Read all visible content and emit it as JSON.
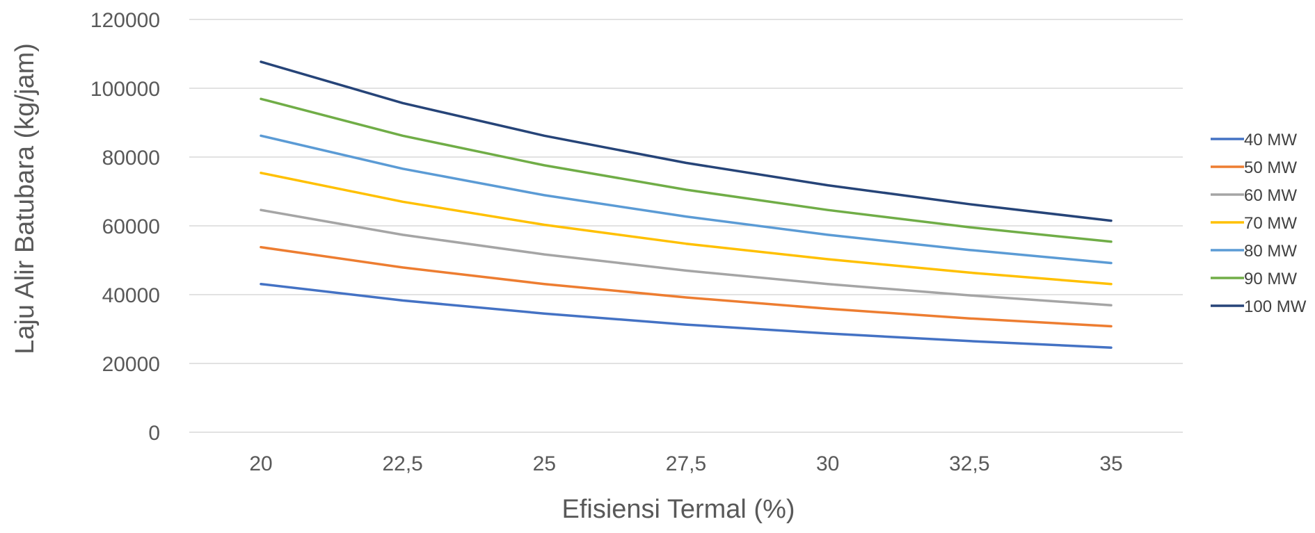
{
  "chart_data": {
    "type": "line",
    "title": "",
    "xlabel": "Efisiensi Termal  (%)",
    "ylabel": "Laju Alir Batubara  (kg/jam)",
    "categories": [
      "20",
      "22,5",
      "25",
      "27,5",
      "30",
      "32,5",
      "35"
    ],
    "x": [
      20,
      22.5,
      25,
      27.5,
      30,
      32.5,
      35
    ],
    "ylim": [
      0,
      120000
    ],
    "yticks": [
      0,
      20000,
      40000,
      60000,
      80000,
      100000,
      120000
    ],
    "grid": true,
    "legend_position": "right",
    "series": [
      {
        "name": "40 MW",
        "color": "#4472C4",
        "values": [
          43100,
          38300,
          34500,
          31300,
          28700,
          26500,
          24600
        ]
      },
      {
        "name": "50 MW",
        "color": "#ED7D31",
        "values": [
          53800,
          47900,
          43100,
          39200,
          35900,
          33100,
          30800
        ]
      },
      {
        "name": "60 MW",
        "color": "#A5A5A5",
        "values": [
          64600,
          57400,
          51700,
          47000,
          43100,
          39800,
          36900
        ]
      },
      {
        "name": "70 MW",
        "color": "#FFC000",
        "values": [
          75400,
          67000,
          60300,
          54800,
          50300,
          46400,
          43100
        ]
      },
      {
        "name": "80 MW",
        "color": "#5B9BD5",
        "values": [
          86200,
          76600,
          68900,
          62700,
          57400,
          53000,
          49200
        ]
      },
      {
        "name": "90 MW",
        "color": "#70AD47",
        "values": [
          96900,
          86200,
          77600,
          70500,
          64600,
          59600,
          55400
        ]
      },
      {
        "name": "100 MW",
        "color": "#264478",
        "values": [
          107700,
          95700,
          86200,
          78300,
          71800,
          66300,
          61500
        ]
      }
    ]
  }
}
